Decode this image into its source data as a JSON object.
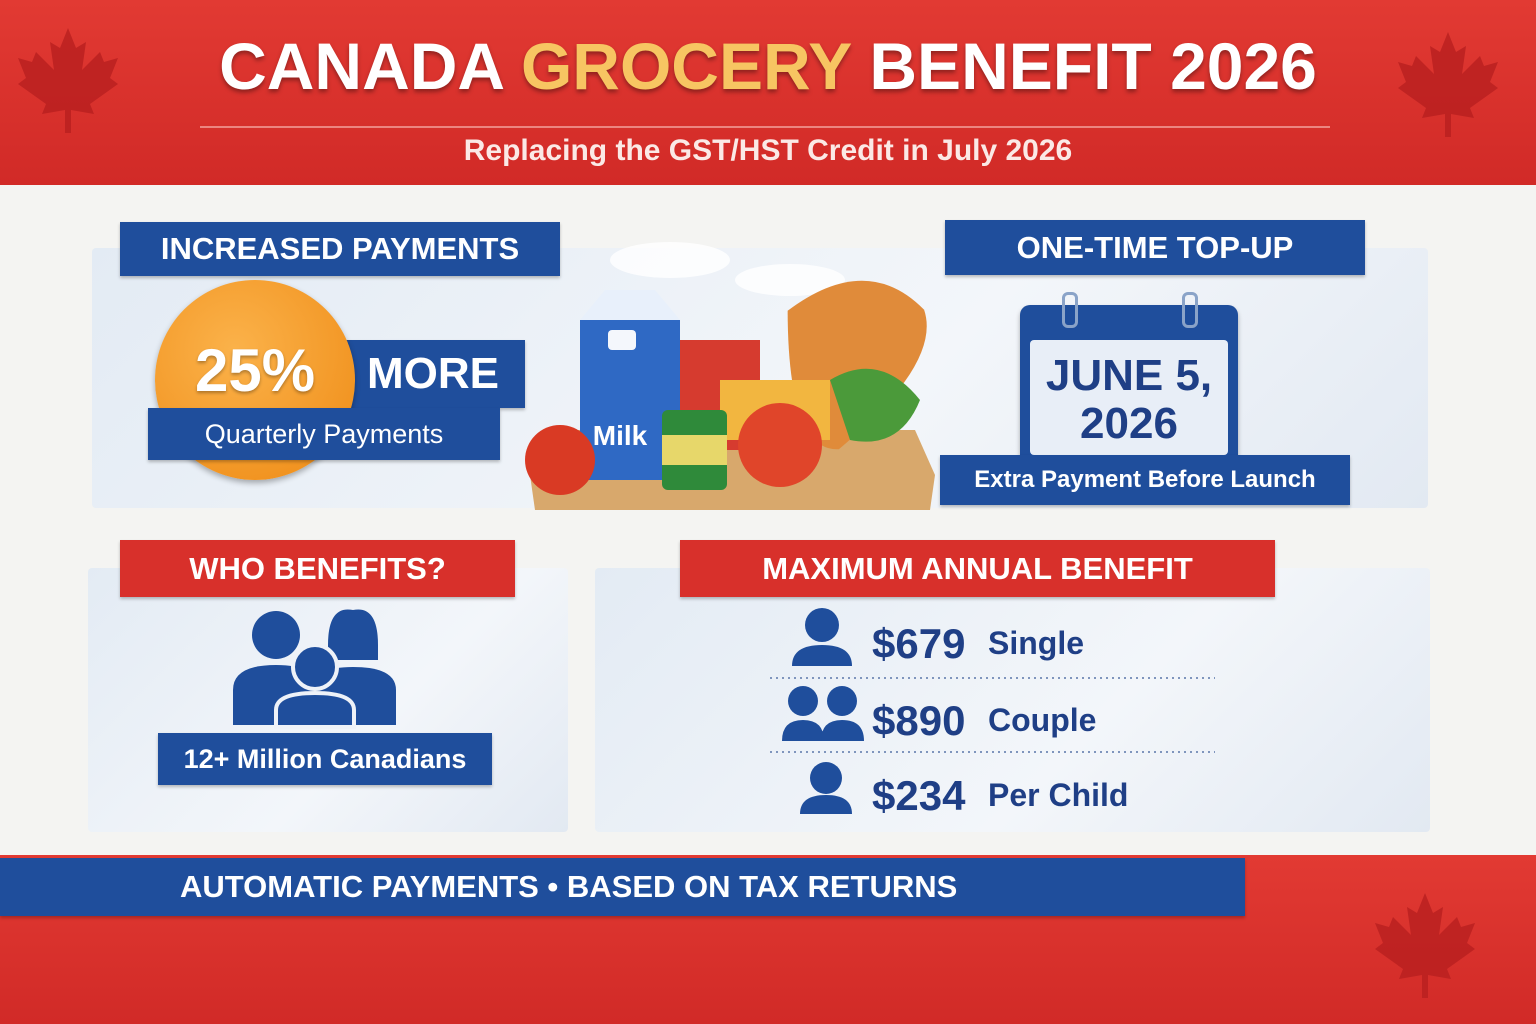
{
  "header": {
    "title": [
      "CANADA",
      "GROCERY",
      "BENEFIT 2026"
    ],
    "subtitle": "Replacing the GST/HST Credit in July 2026"
  },
  "increased_payments": {
    "heading": "INCREASED PAYMENTS",
    "percent": "25%",
    "more": "MORE",
    "caption": "Quarterly Payments"
  },
  "illustration": {
    "milk_label": "Milk"
  },
  "top_up": {
    "heading": "ONE-TIME TOP-UP",
    "date_lines": [
      "JUNE 5,",
      "2026"
    ],
    "caption": "Extra Payment Before Launch"
  },
  "who_benefits": {
    "heading": "WHO BENEFITS?",
    "caption": "12+ Million Canadians"
  },
  "maximum_benefit": {
    "heading": "MAXIMUM ANNUAL BENEFIT",
    "rows": [
      {
        "amount": "$679",
        "label": "Single"
      },
      {
        "amount": "$890",
        "label": "Couple"
      },
      {
        "amount": "$234",
        "label": "Per Child"
      }
    ]
  },
  "footer": "AUTOMATIC PAYMENTS • BASED ON TAX RETURNS"
}
